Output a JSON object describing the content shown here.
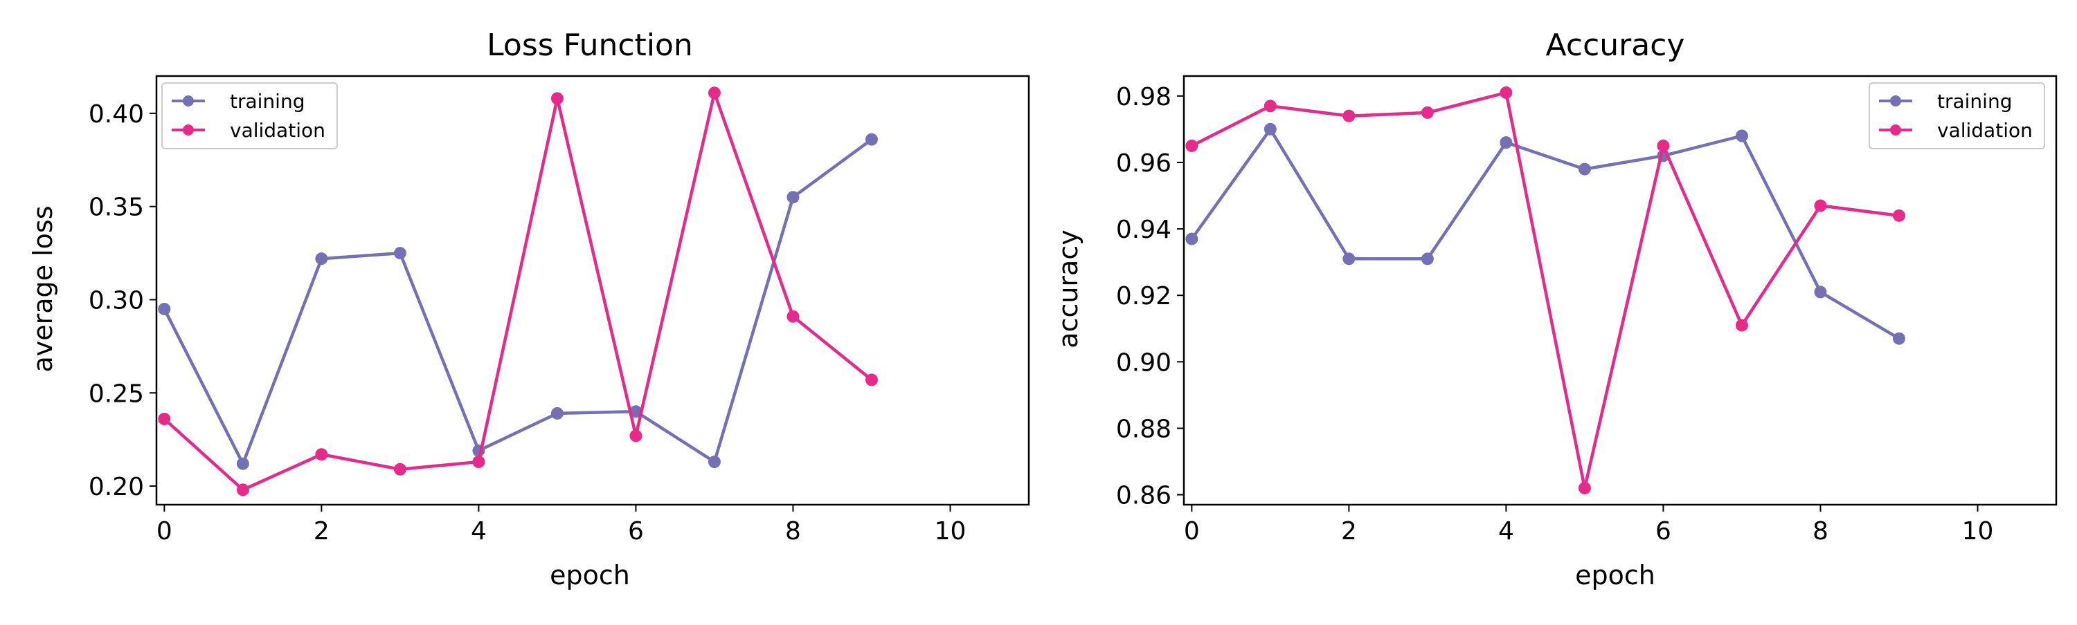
{
  "chart_data": [
    {
      "type": "line",
      "title": "Loss Function",
      "xlabel": "epoch",
      "ylabel": "average loss",
      "xlim": [
        -0.1,
        11
      ],
      "ylim": [
        0.19,
        0.42
      ],
      "xticks": [
        0,
        2,
        4,
        6,
        8,
        10
      ],
      "yticks": [
        0.2,
        0.25,
        0.3,
        0.35,
        0.4
      ],
      "ytick_labels": [
        "0.20",
        "0.25",
        "0.30",
        "0.35",
        "0.40"
      ],
      "grid": false,
      "legend_position": "top-left",
      "x": [
        0,
        1,
        2,
        3,
        4,
        5,
        6,
        7,
        8,
        9
      ],
      "series": [
        {
          "name": "training",
          "color": "#7570b3",
          "values": [
            0.295,
            0.212,
            0.322,
            0.325,
            0.219,
            0.239,
            0.24,
            0.213,
            0.355,
            0.386
          ]
        },
        {
          "name": "validation",
          "color": "#e7298a",
          "values": [
            0.236,
            0.198,
            0.217,
            0.209,
            0.213,
            0.408,
            0.227,
            0.411,
            0.291,
            0.257
          ]
        }
      ]
    },
    {
      "type": "line",
      "title": "Accuracy",
      "xlabel": "epoch",
      "ylabel": "accuracy",
      "xlim": [
        -0.1,
        11
      ],
      "ylim": [
        0.857,
        0.986
      ],
      "xticks": [
        0,
        2,
        4,
        6,
        8,
        10
      ],
      "yticks": [
        0.86,
        0.88,
        0.9,
        0.92,
        0.94,
        0.96,
        0.98
      ],
      "ytick_labels": [
        "0.86",
        "0.88",
        "0.90",
        "0.92",
        "0.94",
        "0.96",
        "0.98"
      ],
      "grid": false,
      "legend_position": "top-right",
      "x": [
        0,
        1,
        2,
        3,
        4,
        5,
        6,
        7,
        8,
        9
      ],
      "series": [
        {
          "name": "training",
          "color": "#7570b3",
          "values": [
            0.937,
            0.97,
            0.931,
            0.931,
            0.966,
            0.958,
            0.962,
            0.968,
            0.921,
            0.907
          ]
        },
        {
          "name": "validation",
          "color": "#e7298a",
          "values": [
            0.965,
            0.977,
            0.974,
            0.975,
            0.981,
            0.862,
            0.965,
            0.911,
            0.947,
            0.944
          ]
        }
      ]
    }
  ]
}
